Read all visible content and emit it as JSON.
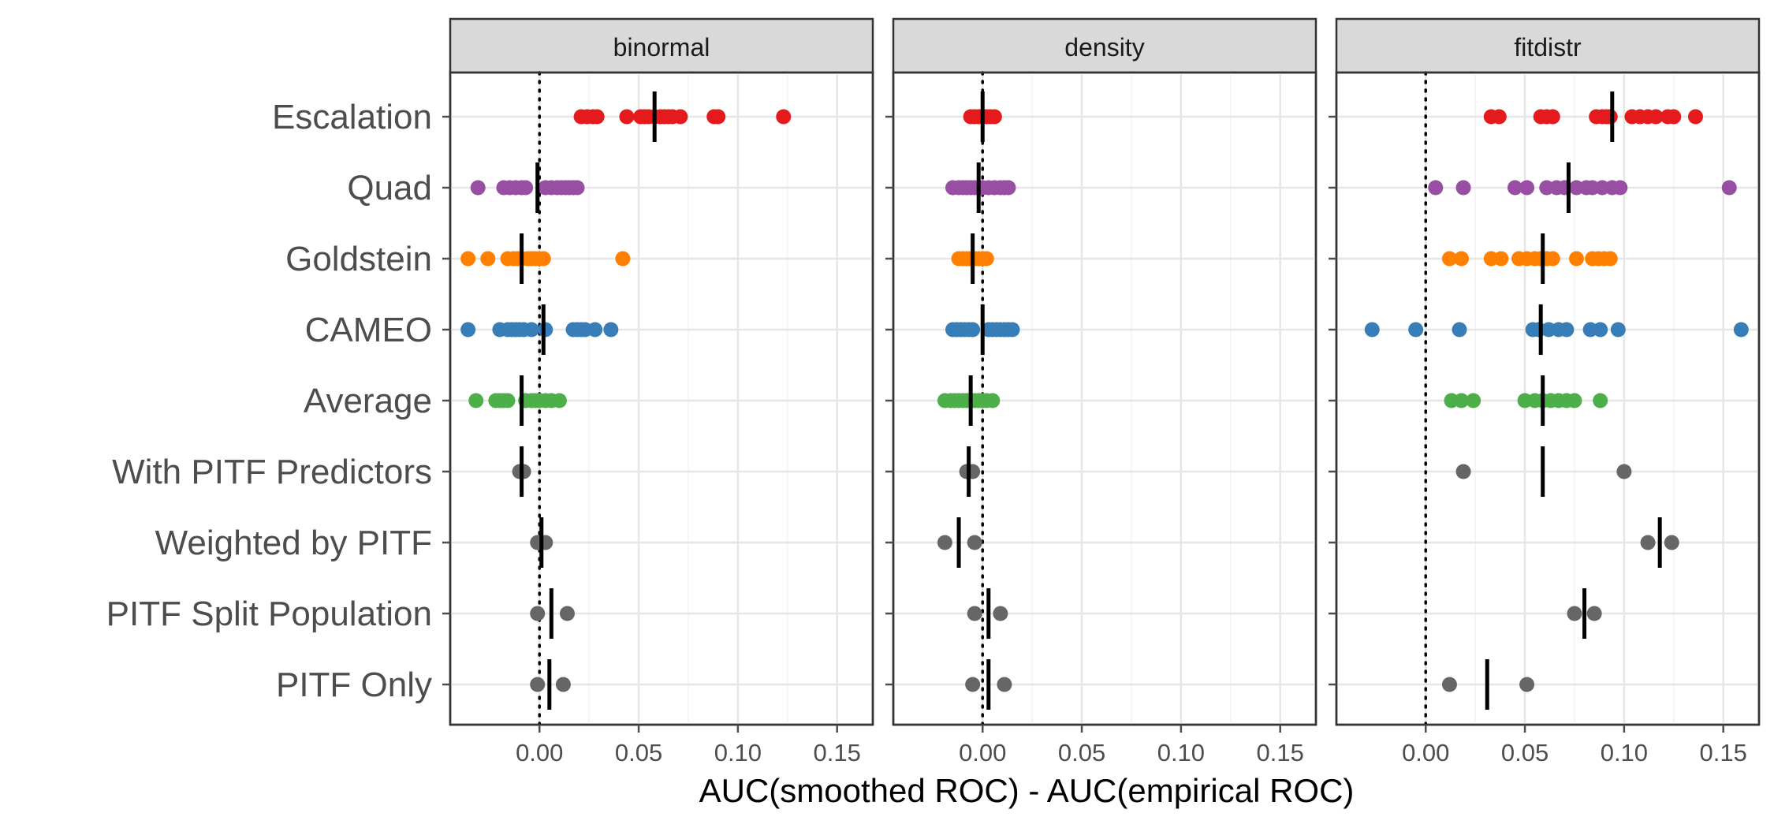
{
  "chart_data": {
    "type": "scatter",
    "xlabel": "AUC(smoothed ROC) - AUC(empirical ROC)",
    "ylabel": "",
    "xlim": [
      -0.045,
      0.168
    ],
    "xticks": [
      0.0,
      0.05,
      0.1,
      0.15
    ],
    "xtick_labels": [
      "0.00",
      "0.05",
      "0.10",
      "0.15"
    ],
    "grid": true,
    "legend": "none",
    "reference_line": {
      "x": 0,
      "style": "dotted"
    },
    "categories": [
      "Escalation",
      "Quad",
      "Goldstein",
      "CAMEO",
      "Average",
      "With PITF Predictors",
      "Weighted by PITF",
      "PITF Split Population",
      "PITF Only"
    ],
    "category_colors": {
      "Escalation": "#e41a1c",
      "Quad": "#984ea3",
      "Goldstein": "#ff7f00",
      "CAMEO": "#377eb8",
      "Average": "#4daf4a",
      "With PITF Predictors": "#666666",
      "Weighted by PITF": "#666666",
      "PITF Split Population": "#666666",
      "PITF Only": "#666666"
    },
    "panels": [
      {
        "name": "binormal",
        "points": {
          "Escalation": [
            0.021,
            0.024,
            0.027,
            0.029,
            0.044,
            0.051,
            0.053,
            0.055,
            0.058,
            0.061,
            0.063,
            0.065,
            0.067,
            0.071,
            0.088,
            0.09,
            0.123
          ],
          "Quad": [
            -0.031,
            -0.018,
            -0.015,
            -0.012,
            -0.009,
            -0.007,
            0.003,
            0.006,
            0.009,
            0.011,
            0.013,
            0.015,
            0.017,
            0.019
          ],
          "Goldstein": [
            -0.036,
            -0.026,
            -0.016,
            -0.013,
            -0.011,
            -0.009,
            -0.006,
            -0.004,
            -0.002,
            0.0,
            0.002,
            0.042
          ],
          "CAMEO": [
            -0.036,
            -0.02,
            -0.016,
            -0.014,
            -0.012,
            -0.01,
            -0.008,
            -0.004,
            0.003,
            0.017,
            0.019,
            0.021,
            0.023,
            0.028,
            0.036
          ],
          "Average": [
            -0.032,
            -0.022,
            -0.02,
            -0.018,
            -0.016,
            -0.007,
            -0.004,
            -0.002,
            0.0,
            0.003,
            0.006,
            0.01
          ],
          "With PITF Predictors": [
            -0.01,
            -0.008
          ],
          "Weighted by PITF": [
            -0.001,
            0.003
          ],
          "PITF Split Population": [
            -0.001,
            0.014
          ],
          "PITF Only": [
            -0.001,
            0.012
          ]
        },
        "means": {
          "Escalation": 0.058,
          "Quad": -0.001,
          "Goldstein": -0.009,
          "CAMEO": 0.002,
          "Average": -0.009,
          "With PITF Predictors": -0.009,
          "Weighted by PITF": 0.001,
          "PITF Split Population": 0.006,
          "PITF Only": 0.005
        }
      },
      {
        "name": "density",
        "points": {
          "Escalation": [
            -0.006,
            -0.004,
            -0.002,
            0.0,
            0.002,
            0.004,
            0.006
          ],
          "Quad": [
            -0.015,
            -0.012,
            -0.01,
            -0.008,
            -0.006,
            -0.004,
            -0.002,
            0.0,
            0.003,
            0.006,
            0.009,
            0.011,
            0.013
          ],
          "Goldstein": [
            -0.012,
            -0.01,
            -0.008,
            -0.006,
            -0.004,
            -0.002,
            0.0,
            0.002
          ],
          "CAMEO": [
            -0.015,
            -0.013,
            -0.011,
            -0.009,
            -0.007,
            -0.005,
            0.003,
            0.005,
            0.007,
            0.009,
            0.011,
            0.013,
            0.015
          ],
          "Average": [
            -0.019,
            -0.016,
            -0.014,
            -0.012,
            -0.01,
            -0.008,
            -0.006,
            -0.004,
            -0.002,
            0.0,
            0.002,
            0.005
          ],
          "With PITF Predictors": [
            -0.008,
            -0.005
          ],
          "Weighted by PITF": [
            -0.019,
            -0.004
          ],
          "PITF Split Population": [
            -0.004,
            0.009
          ],
          "PITF Only": [
            -0.005,
            0.011
          ]
        },
        "means": {
          "Escalation": 0.0,
          "Quad": -0.002,
          "Goldstein": -0.005,
          "CAMEO": 0.0,
          "Average": -0.006,
          "With PITF Predictors": -0.007,
          "Weighted by PITF": -0.012,
          "PITF Split Population": 0.003,
          "PITF Only": 0.003
        }
      },
      {
        "name": "fitdistr",
        "points": {
          "Escalation": [
            0.033,
            0.037,
            0.058,
            0.061,
            0.064,
            0.086,
            0.089,
            0.091,
            0.093,
            0.104,
            0.108,
            0.112,
            0.116,
            0.122,
            0.125,
            0.136
          ],
          "Quad": [
            0.005,
            0.019,
            0.045,
            0.051,
            0.061,
            0.066,
            0.07,
            0.076,
            0.081,
            0.084,
            0.089,
            0.094,
            0.098,
            0.153
          ],
          "Goldstein": [
            0.012,
            0.018,
            0.033,
            0.038,
            0.047,
            0.051,
            0.055,
            0.058,
            0.061,
            0.064,
            0.076,
            0.084,
            0.087,
            0.09,
            0.093
          ],
          "CAMEO": [
            -0.027,
            -0.005,
            0.017,
            0.054,
            0.057,
            0.062,
            0.067,
            0.071,
            0.083,
            0.088,
            0.097,
            0.159
          ],
          "Average": [
            0.013,
            0.018,
            0.024,
            0.05,
            0.055,
            0.059,
            0.063,
            0.067,
            0.071,
            0.075,
            0.088
          ],
          "With PITF Predictors": [
            0.019,
            0.1
          ],
          "Weighted by PITF": [
            0.112,
            0.124
          ],
          "PITF Split Population": [
            0.075,
            0.085
          ],
          "PITF Only": [
            0.012,
            0.051
          ]
        },
        "means": {
          "Escalation": 0.094,
          "Quad": 0.072,
          "Goldstein": 0.059,
          "CAMEO": 0.058,
          "Average": 0.059,
          "With PITF Predictors": 0.059,
          "Weighted by PITF": 0.118,
          "PITF Split Population": 0.08,
          "PITF Only": 0.031
        }
      }
    ]
  }
}
